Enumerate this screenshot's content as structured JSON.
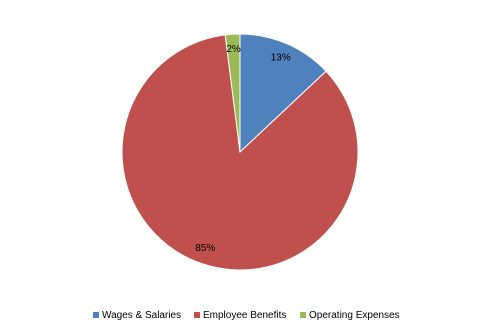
{
  "chart_data": {
    "type": "pie",
    "categories": [
      "Wages & Salaries",
      "Employee Benefits",
      "Operating Expenses"
    ],
    "values": [
      13,
      85,
      2
    ],
    "value_labels": [
      "13%",
      "85%",
      "2%"
    ],
    "colors": [
      "#4f81bd",
      "#c0504d",
      "#9bbb59"
    ],
    "legend": "bottom"
  }
}
